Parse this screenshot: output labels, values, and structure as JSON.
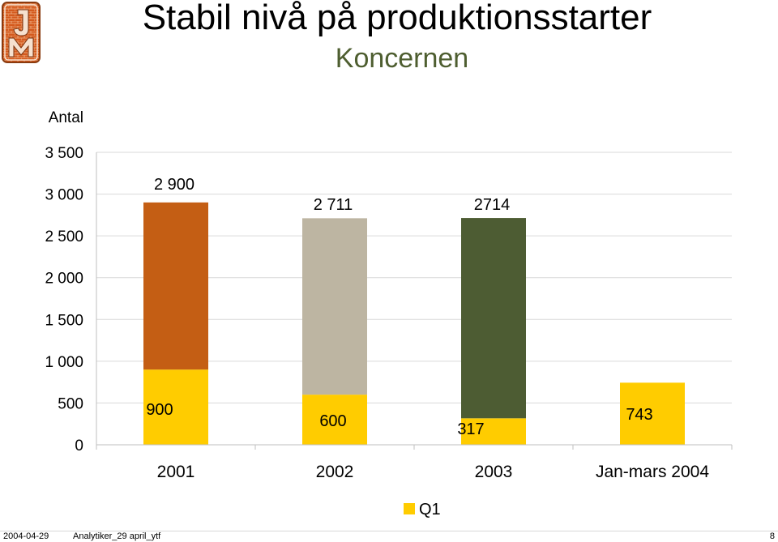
{
  "slide": {
    "title": "Stabil nivå på produktionsstarter",
    "subtitle": "Koncernen",
    "logo_text": "JM",
    "footer_date": "2004-04-29",
    "footer_file": "Analytiker_29 april_ytf",
    "page_number": "8"
  },
  "colors": {
    "title": "#000000",
    "subtitle": "#4e5e30",
    "q1": "#ffcc00",
    "bar_2001": "#c45e14",
    "bar_2002": "#bdb5a2",
    "bar_2003": "#4d5c33",
    "logo_bg": "#d45a1e"
  },
  "chart_data": {
    "type": "bar",
    "stacked": true,
    "ylabel": "Antal",
    "ylim": [
      0,
      3500
    ],
    "yticks": [
      0,
      500,
      1000,
      1500,
      2000,
      2500,
      3000,
      3500
    ],
    "ytick_labels": [
      "0",
      "500",
      "1 000",
      "1 500",
      "2 000",
      "2 500",
      "3 000",
      "3 500"
    ],
    "grid": true,
    "categories": [
      "2001",
      "2002",
      "2003",
      "Jan-mars 2004"
    ],
    "series": [
      {
        "name": "Q1",
        "values": [
          900,
          600,
          317,
          743
        ],
        "labels": [
          "900",
          "600",
          "317",
          "743"
        ]
      },
      {
        "values": [
          2000,
          2111,
          2397,
          0
        ],
        "colors": [
          "#c45e14",
          "#bdb5a2",
          "#4d5c33",
          null
        ]
      }
    ],
    "totals": [
      2900,
      2711,
      2714,
      null
    ],
    "total_labels": [
      "2 900",
      "2 711",
      "2714",
      null
    ],
    "legend": {
      "position": "bottom",
      "entries": [
        "Q1"
      ]
    }
  }
}
